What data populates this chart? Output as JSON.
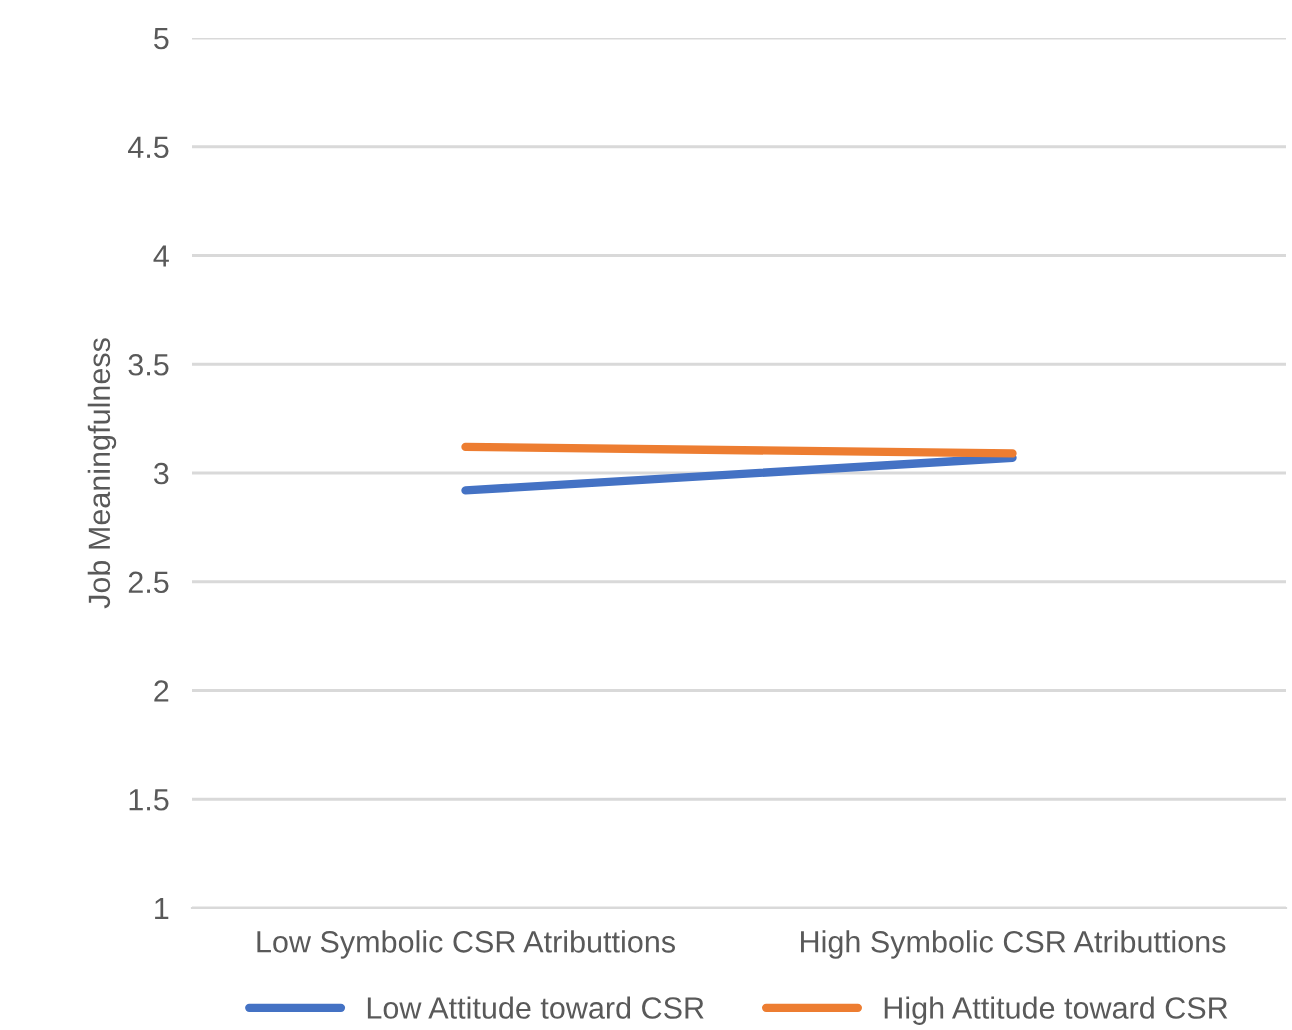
{
  "chart_data": {
    "type": "line",
    "ylabel": "Job Meaningfulness",
    "categories": [
      "Low Symbolic CSR Atributtions",
      "High Symbolic CSR Atributtions"
    ],
    "series": [
      {
        "name": "Low Attitude toward CSR",
        "color": "#4472c4",
        "values": [
          2.92,
          3.07
        ]
      },
      {
        "name": "High Attitude toward CSR",
        "color": "#ed7d31",
        "values": [
          3.12,
          3.09
        ]
      }
    ],
    "ylim": [
      1,
      5
    ],
    "yticks": [
      1,
      1.5,
      2,
      2.5,
      3,
      3.5,
      4,
      4.5,
      5
    ],
    "grid": "y",
    "legend": "bottom",
    "marker": "none",
    "line_style": "solid"
  }
}
